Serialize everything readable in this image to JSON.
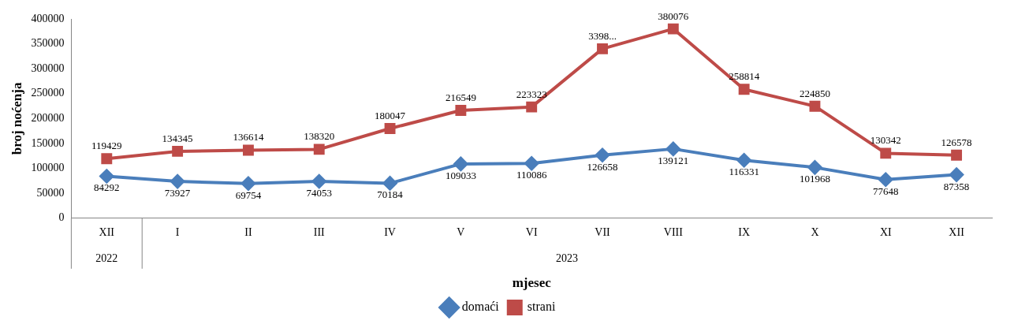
{
  "chart_data": {
    "type": "line",
    "ylabel": "broj noćenja",
    "xlabel": "mjesec",
    "categories": [
      "XII",
      "I",
      "II",
      "III",
      "IV",
      "V",
      "VI",
      "VII",
      "VIII",
      "IX",
      "X",
      "XI",
      "XII"
    ],
    "annotations": [
      "2022",
      "2023"
    ],
    "series": [
      {
        "name": "domaći",
        "color": "#4a7ebb",
        "marker": "diamond",
        "values": [
          84292,
          73927,
          69754,
          74053,
          70184,
          109033,
          110086,
          126658,
          139121,
          116331,
          101968,
          77648,
          87358
        ],
        "value_labels": [
          "84292",
          "73927",
          "69754",
          "74053",
          "70184",
          "109033",
          "110086",
          "126658",
          "139121",
          "116331",
          "101968",
          "77648",
          "87358"
        ]
      },
      {
        "name": "strani",
        "color": "#be4b48",
        "marker": "square",
        "values": [
          119429,
          134345,
          136614,
          138320,
          180047,
          216549,
          223323,
          340000,
          380076,
          258814,
          224850,
          130342,
          126578
        ],
        "value_labels": [
          "119429",
          "134345",
          "136614",
          "138320",
          "180047",
          "216549",
          "223323",
          "3398...",
          "380076",
          "258814",
          "224850",
          "130342",
          "126578"
        ]
      }
    ],
    "ylim": [
      0,
      400000
    ],
    "yticks": [
      0,
      50000,
      100000,
      150000,
      200000,
      250000,
      300000,
      350000,
      400000
    ],
    "grid": false,
    "legend": "bottom",
    "line_style": "solid"
  }
}
